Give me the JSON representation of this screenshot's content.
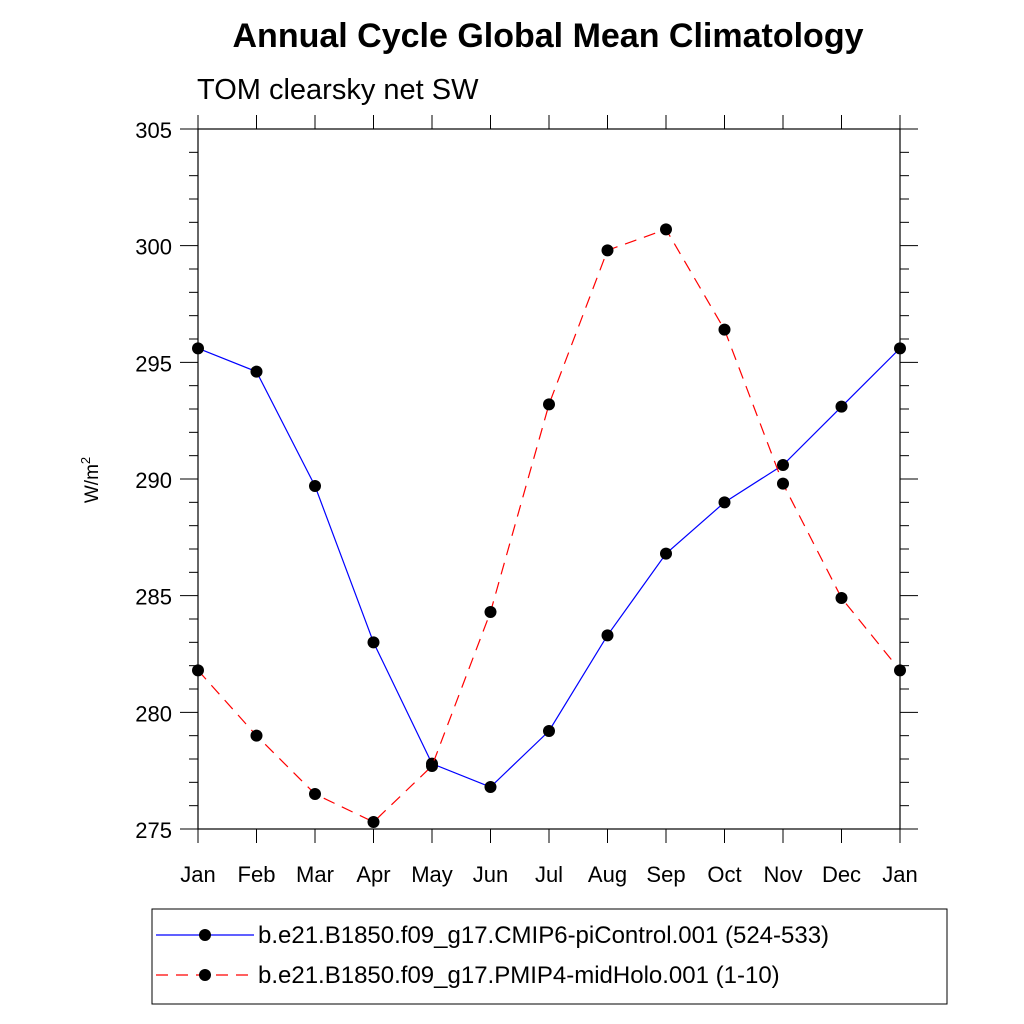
{
  "chart_data": {
    "type": "line",
    "title": "Annual Cycle Global Mean Climatology",
    "subtitle": "TOM clearsky net SW",
    "ylabel": "W/m",
    "ylabel_superscript": "2",
    "xlabel": "",
    "categories": [
      "Jan",
      "Feb",
      "Mar",
      "Apr",
      "May",
      "Jun",
      "Jul",
      "Aug",
      "Sep",
      "Oct",
      "Nov",
      "Dec",
      "Jan"
    ],
    "ylim": [
      275,
      305
    ],
    "yticks": [
      "275",
      "280",
      "285",
      "290",
      "295",
      "300",
      "305"
    ],
    "grid": false,
    "legend_position": "bottom",
    "series": [
      {
        "name": "b.e21.B1850.f09_g17.CMIP6-piControl.001 (524-533)",
        "color": "#0000ff",
        "line_style": "solid",
        "values": [
          295.6,
          294.6,
          289.7,
          283.0,
          277.8,
          276.8,
          279.2,
          283.3,
          286.8,
          289.0,
          290.6,
          293.1,
          295.6
        ]
      },
      {
        "name": "b.e21.B1850.f09_g17.PMIP4-midHolo.001 (1-10)",
        "color": "#ff0000",
        "line_style": "dashed",
        "values": [
          281.8,
          279.0,
          276.5,
          275.3,
          277.7,
          284.3,
          293.2,
          299.8,
          300.7,
          296.4,
          289.8,
          284.9,
          281.8
        ]
      }
    ]
  }
}
